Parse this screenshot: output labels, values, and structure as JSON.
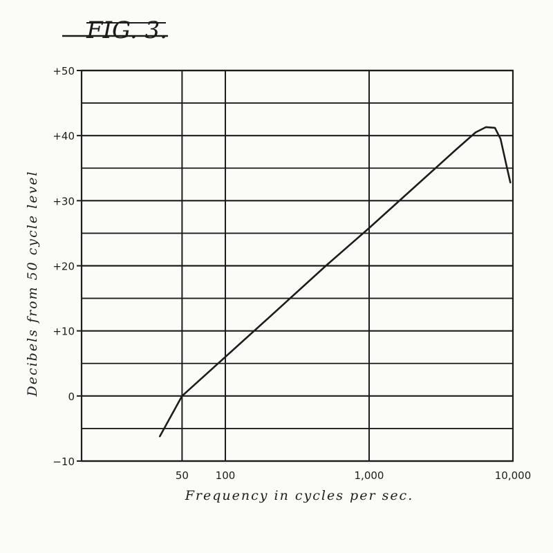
{
  "figure_label": "FIG. 3.",
  "chart_data": {
    "type": "line",
    "xscale": "log",
    "xlim": [
      10,
      10000
    ],
    "ylim": [
      -10,
      50
    ],
    "grid": true,
    "xlabel": "Frequency in cycles per sec.",
    "ylabel": "Decibels from 50 cycle level",
    "x_ticks": [
      50,
      100,
      1000,
      10000
    ],
    "x_tick_labels": [
      "50",
      "100",
      "1,000",
      "10,000"
    ],
    "y_ticks": [
      -10,
      0,
      10,
      20,
      30,
      40,
      50
    ],
    "y_tick_labels": [
      "−10",
      "0",
      "+10",
      "+20",
      "+30",
      "+40",
      "+50"
    ],
    "series": [
      {
        "x": [
          35,
          50,
          100,
          200,
          500,
          1000,
          2000,
          4000,
          5500,
          6500,
          7500,
          8200,
          9000,
          9600
        ],
        "y": [
          -6.2,
          0,
          6,
          12,
          20,
          25.8,
          31.8,
          37.8,
          40.5,
          41.3,
          41.2,
          39.5,
          35.5,
          32.8
        ]
      }
    ],
    "line_color": "#1c1c1c",
    "grid_color": "#1c1c1c"
  }
}
